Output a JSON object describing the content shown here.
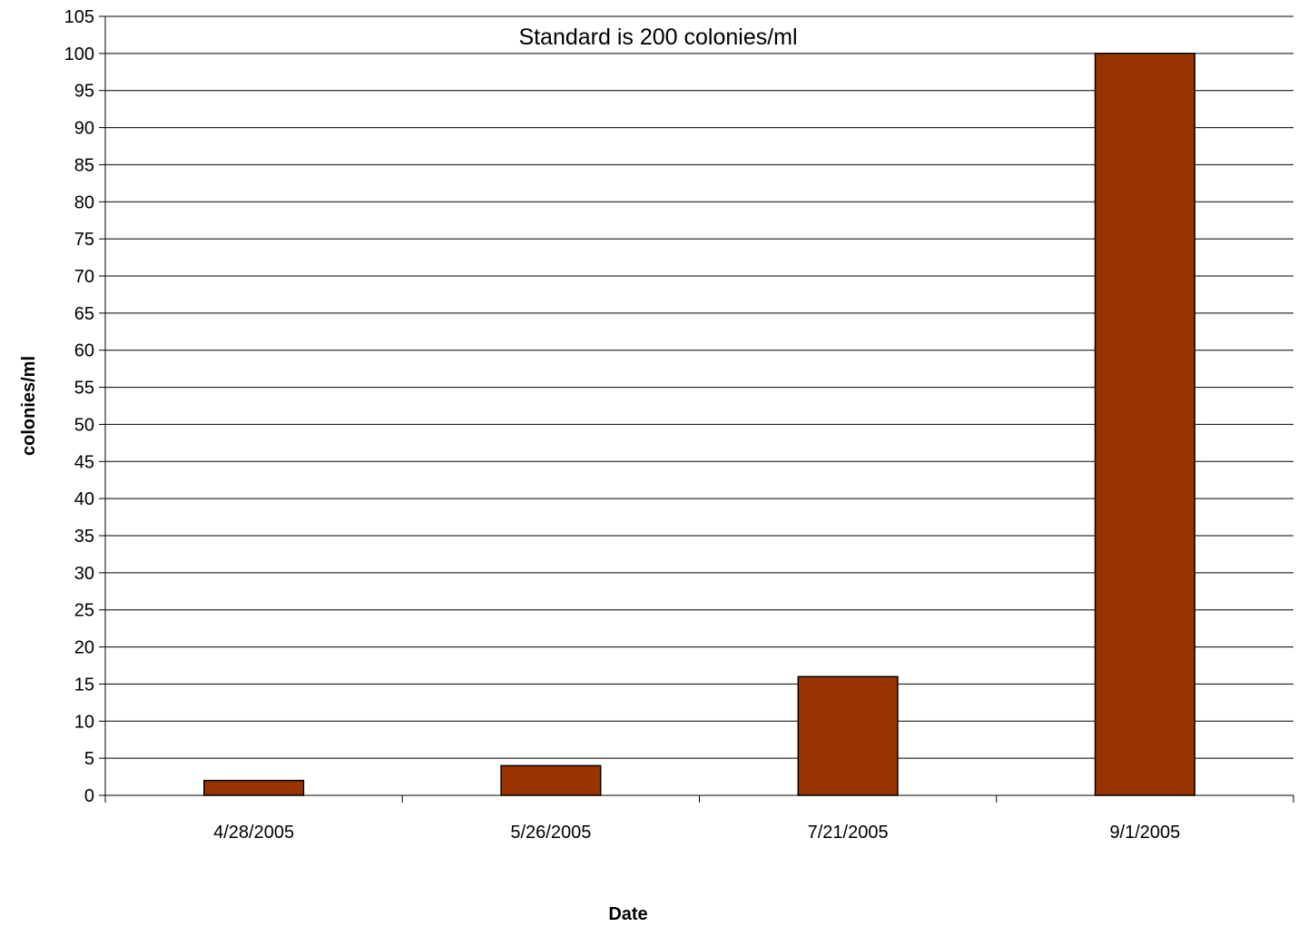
{
  "chart_data": {
    "type": "bar",
    "categories": [
      "4/28/2005",
      "5/26/2005",
      "7/21/2005",
      "9/1/2005"
    ],
    "values": [
      2,
      4,
      16,
      100
    ],
    "xlabel": "Date",
    "ylabel": "colonies/ml",
    "ylim": [
      0,
      105
    ],
    "ytick_step": 5,
    "annotation": "Standard is 200 colonies/ml",
    "grid": true,
    "legend": "none",
    "bar_color": "#993300",
    "bar_edge_color": "#000000"
  }
}
